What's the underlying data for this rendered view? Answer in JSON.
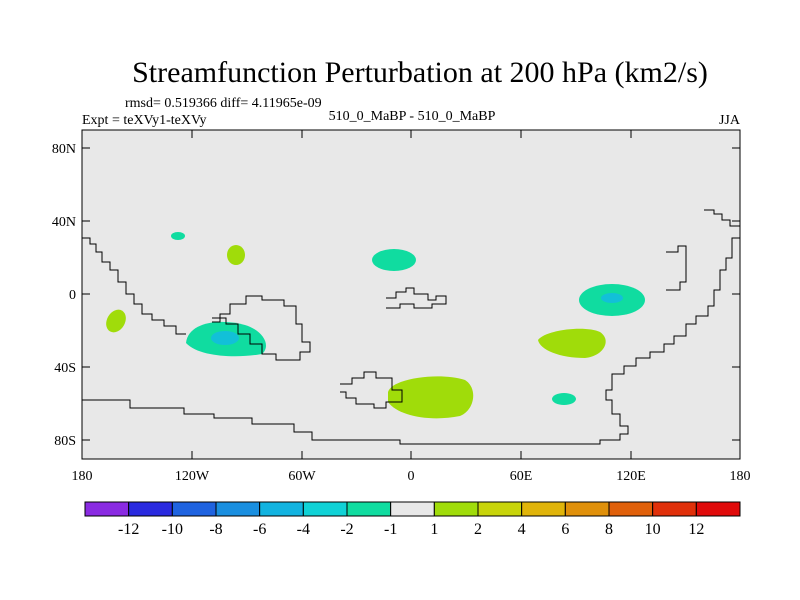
{
  "title": "Streamfunction Perturbation at 200 hPa (km2/s)",
  "stats_line": "rmsd= 0.519366 diff= 4.11965e-09",
  "experiment": "Expt = teXVy1-teXVy",
  "case_label": "510_0_MaBP - 510_0_MaBP",
  "season": "JJA",
  "y_ticks": [
    "80N",
    "40N",
    "0",
    "40S",
    "80S"
  ],
  "x_ticks": [
    "180",
    "120W",
    "60W",
    "0",
    "60E",
    "120E",
    "180"
  ],
  "colorbar": {
    "colors": [
      "#8a2be2",
      "#2a2adf",
      "#1f63e0",
      "#1a8fe0",
      "#12b3e0",
      "#10d2d6",
      "#10dca0",
      "#e8e8e8",
      "#a0dc0a",
      "#c8d40a",
      "#e0b40a",
      "#e0900a",
      "#e0600a",
      "#e0300a",
      "#e00a0a"
    ],
    "labels": [
      "-12",
      "-10",
      "-8",
      "-6",
      "-4",
      "-2",
      "-1",
      "1",
      "2",
      "4",
      "6",
      "8",
      "10",
      "12"
    ]
  },
  "colors": {
    "background": "#e8e8e8",
    "neg_fill": "#10dca0",
    "neg_core": "#12c0d8",
    "pos_fill": "#a0dc0a"
  }
}
